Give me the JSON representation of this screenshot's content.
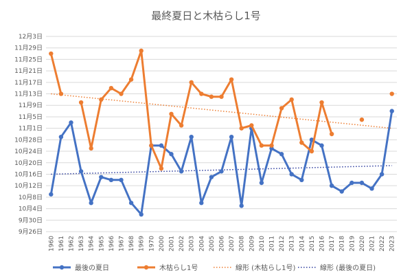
{
  "chart_data": {
    "type": "line",
    "title": "最終夏日と木枯らし1号",
    "categories": [
      "1960",
      "1961",
      "1962",
      "1963",
      "1964",
      "1965",
      "1966",
      "1967",
      "1968",
      "1969",
      "1970",
      "2000",
      "2001",
      "2002",
      "2003",
      "2004",
      "2005",
      "2006",
      "2007",
      "2008",
      "2009",
      "2010",
      "2011",
      "2012",
      "2013",
      "2014",
      "2015",
      "2016",
      "2017",
      "2018",
      "2019",
      "2020",
      "2021",
      "2022",
      "2023"
    ],
    "y_tick_labels": [
      "9月26日",
      "9月30日",
      "10月4日",
      "10月8日",
      "10月12日",
      "10月16日",
      "10月20日",
      "10月24日",
      "10月28日",
      "11月1日",
      "11月5日",
      "11月9日",
      "11月13日",
      "11月17日",
      "11月21日",
      "11月25日",
      "11月29日",
      "12月3日"
    ],
    "ylim": [
      "9月26日",
      "12月3日"
    ],
    "grid": true,
    "legend_position": "bottom",
    "series": [
      {
        "name": "最後の夏日",
        "color": "#4472C4",
        "values": [
          "10月9日",
          "10月29日",
          "11月3日",
          "10月17日",
          "10月6日",
          "10月15日",
          "10月14日",
          "10月14日",
          "10月6日",
          "10月2日",
          "10月26日",
          "10月26日",
          "10月23日",
          "10月17日",
          "10月29日",
          "10月6日",
          "10月15日",
          "10月17日",
          "10月29日",
          "10月5日",
          "11月1日",
          "10月13日",
          "10月25日",
          "10月23日",
          "10月16日",
          "10月14日",
          "10月28日",
          "10月26日",
          "10月12日",
          "10月10日",
          "10月13日",
          "10月13日",
          "10月11日",
          "10月16日",
          "11月7日"
        ]
      },
      {
        "name": "木枯らし1号",
        "color": "#ED7D31",
        "values": [
          "11月27日",
          "11月13日",
          null,
          "11月10日",
          "10月25日",
          "11月11日",
          "11月15日",
          "11月13日",
          "11月18日",
          "11月28日",
          "10月26日",
          "10月18日",
          "11月6日",
          "11月2日",
          "11月17日",
          "11月13日",
          "11月12日",
          "11月12日",
          "11月18日",
          "11月1日",
          "11月2日",
          "10月26日",
          "10月26日",
          "11月8日",
          "11月11日",
          "10月27日",
          "10月24日",
          "11月10日",
          "10月30日",
          null,
          null,
          "11月4日",
          null,
          null,
          "11月13日"
        ]
      }
    ],
    "trendlines": [
      {
        "name": "線形 (木枯らし1号)",
        "color": "#ED7D31",
        "style": "dotted",
        "start": "11月13日",
        "end": "11月1日"
      },
      {
        "name": "線形 (最後の夏日)",
        "color": "#2F3E9E",
        "style": "dotted",
        "start": "10月16日",
        "end": "10月19日"
      }
    ]
  }
}
